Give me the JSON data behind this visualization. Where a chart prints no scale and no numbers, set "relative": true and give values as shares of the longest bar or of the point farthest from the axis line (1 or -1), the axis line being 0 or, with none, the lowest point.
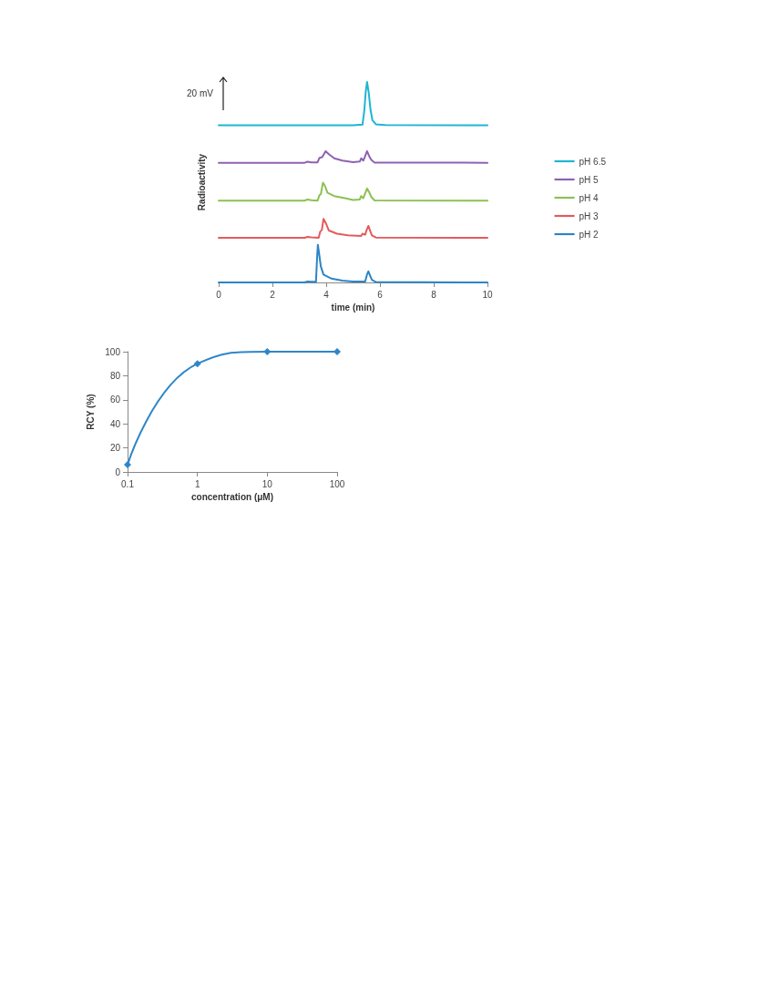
{
  "chart_data": [
    {
      "type": "line",
      "relative": true,
      "xlabel": "time (min)",
      "ylabel": "Radioactivity",
      "xlim": [
        0,
        10
      ],
      "xticks": [
        0,
        2,
        4,
        6,
        8,
        10
      ],
      "grid": false,
      "legend": "right",
      "marker": "none",
      "annotations": [
        "20 mV"
      ],
      "series": [
        {
          "name": "pH 6.5",
          "color": "#1fb5d3",
          "x": [
            0,
            5.0,
            5.35,
            5.42,
            5.47,
            5.52,
            5.58,
            5.65,
            5.72,
            5.85,
            6.2,
            10
          ],
          "values": [
            0.784,
            0.784,
            0.787,
            0.86,
            0.95,
            1.0,
            0.95,
            0.86,
            0.81,
            0.789,
            0.785,
            0.784
          ]
        },
        {
          "name": "pH 5",
          "color": "#8e62b2",
          "x": [
            0,
            3.2,
            3.3,
            3.45,
            3.68,
            3.75,
            3.85,
            3.98,
            4.1,
            4.3,
            4.6,
            5.0,
            5.25,
            5.3,
            5.38,
            5.45,
            5.52,
            5.6,
            5.68,
            5.8,
            10
          ],
          "values": [
            0.597,
            0.597,
            0.602,
            0.599,
            0.599,
            0.622,
            0.625,
            0.655,
            0.64,
            0.619,
            0.608,
            0.6,
            0.603,
            0.619,
            0.608,
            0.63,
            0.655,
            0.63,
            0.611,
            0.598,
            0.597
          ]
        },
        {
          "name": "pH 4",
          "color": "#8cc152",
          "x": [
            0,
            3.2,
            3.3,
            3.45,
            3.68,
            3.75,
            3.8,
            3.88,
            3.95,
            4.05,
            4.3,
            4.7,
            5.0,
            5.25,
            5.3,
            5.38,
            5.45,
            5.52,
            5.6,
            5.68,
            5.8,
            10
          ],
          "values": [
            0.408,
            0.408,
            0.414,
            0.41,
            0.408,
            0.436,
            0.44,
            0.498,
            0.483,
            0.447,
            0.431,
            0.42,
            0.411,
            0.414,
            0.431,
            0.42,
            0.445,
            0.469,
            0.45,
            0.426,
            0.409,
            0.408
          ]
        },
        {
          "name": "pH 3",
          "color": "#e35b5b",
          "x": [
            0,
            3.2,
            3.3,
            3.45,
            3.72,
            3.78,
            3.84,
            3.9,
            3.98,
            4.1,
            4.4,
            4.8,
            5.3,
            5.35,
            5.45,
            5.5,
            5.57,
            5.63,
            5.7,
            5.85,
            10
          ],
          "values": [
            0.223,
            0.223,
            0.227,
            0.225,
            0.223,
            0.254,
            0.262,
            0.317,
            0.298,
            0.259,
            0.243,
            0.235,
            0.232,
            0.243,
            0.238,
            0.26,
            0.282,
            0.26,
            0.235,
            0.224,
            0.223
          ]
        },
        {
          "name": "pH 2",
          "color": "#2c85c6",
          "x": [
            0,
            3.2,
            3.3,
            3.45,
            3.62,
            3.66,
            3.69,
            3.73,
            3.8,
            3.9,
            4.2,
            4.6,
            5.0,
            5.45,
            5.52,
            5.57,
            5.63,
            5.7,
            5.85,
            10
          ],
          "values": [
            0,
            0,
            0.005,
            0.003,
            0.003,
            0.12,
            0.188,
            0.15,
            0.08,
            0.039,
            0.019,
            0.009,
            0.004,
            0.005,
            0.04,
            0.055,
            0.035,
            0.013,
            0.002,
            0
          ]
        }
      ]
    },
    {
      "type": "line",
      "xlabel": "concentration (μM)",
      "ylabel": "RCY (%)",
      "log": "x",
      "xlim": [
        0.1,
        100
      ],
      "xticks": [
        0.1,
        1,
        10,
        100
      ],
      "ylim": [
        0,
        100
      ],
      "yticks": [
        0,
        20,
        40,
        60,
        80,
        100
      ],
      "grid": false,
      "marker": "diamond",
      "series": [
        {
          "color": "#2e86c8",
          "x": [
            0.1,
            1,
            10,
            100
          ],
          "values": [
            6,
            90,
            100,
            100
          ]
        }
      ]
    }
  ]
}
